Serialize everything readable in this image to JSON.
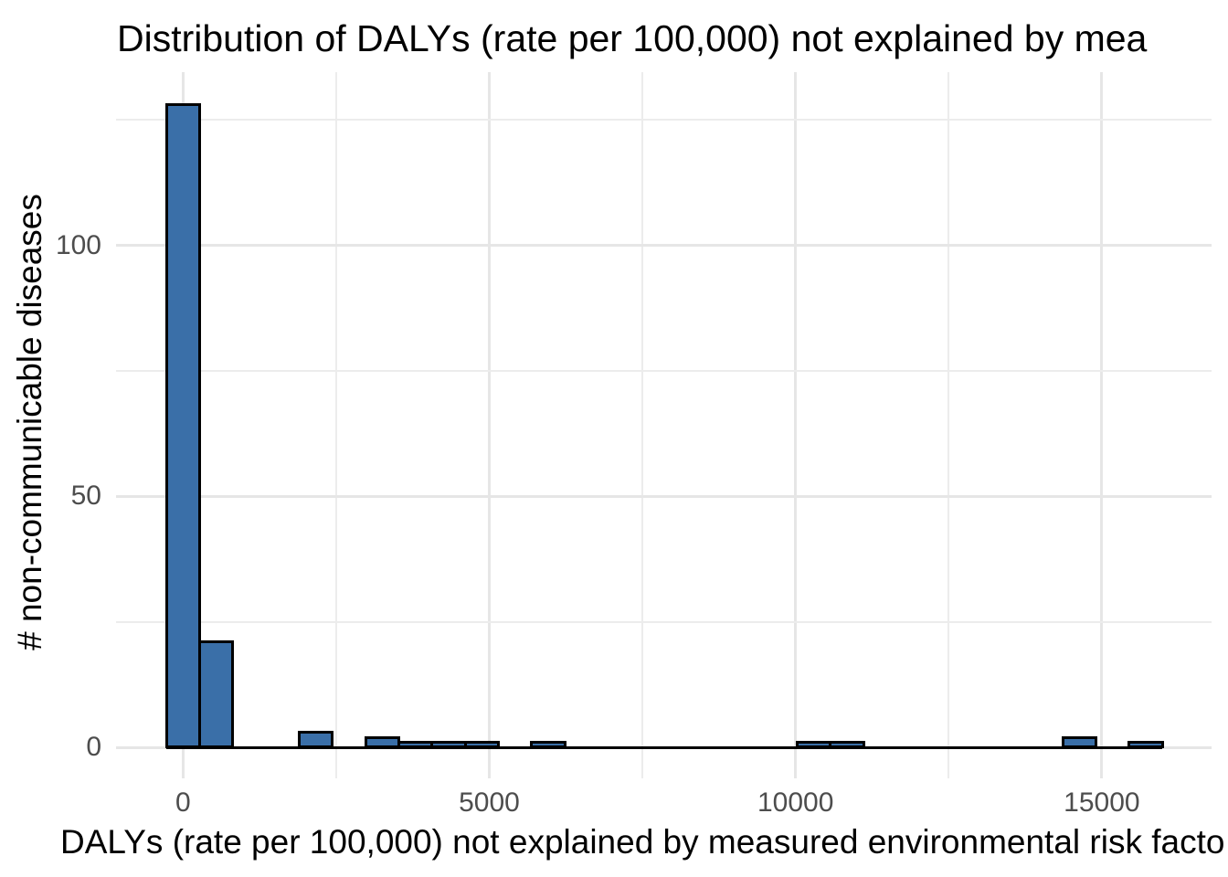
{
  "chart_data": {
    "type": "histogram",
    "title": "Distribution of DALYs (rate per 100,000) not explained by mea",
    "xlabel": "DALYs (rate per 100,000) not explained by measured environmental risk facto",
    "ylabel": "# non-communicable diseases",
    "x_tick_values": [
      0,
      5000,
      10000,
      15000
    ],
    "x_tick_labels": [
      "0",
      "5000",
      "10000",
      "15000"
    ],
    "x_minor_values": [
      2500,
      7500,
      12500
    ],
    "y_tick_values": [
      0,
      50,
      100
    ],
    "y_tick_labels": [
      "0",
      "50",
      "100"
    ],
    "y_minor_values": [
      25,
      75,
      125
    ],
    "bin_width": 542,
    "bin_centers": [
      0,
      542,
      1084,
      1626,
      2168,
      2710,
      3252,
      3794,
      4336,
      4878,
      5420,
      5962,
      6504,
      7046,
      7588,
      8130,
      8672,
      9214,
      9756,
      10298,
      10840,
      11382,
      11924,
      12466,
      13008,
      13550,
      14092,
      14634,
      15176,
      15718
    ],
    "counts": [
      128,
      21,
      0,
      0,
      3,
      0,
      2,
      1,
      1,
      1,
      0,
      1,
      0,
      0,
      0,
      0,
      0,
      0,
      0,
      1,
      1,
      0,
      0,
      0,
      0,
      0,
      0,
      2,
      0,
      1
    ],
    "xlim": [
      -1090,
      16890
    ],
    "ylim": [
      -6.5,
      134.5
    ],
    "grid": "on",
    "legend": "none",
    "colors": {
      "bar_fill": "#3A6FA8",
      "bar_stroke": "#000000",
      "grid_major": "#E6E6E6",
      "grid_minor": "#ECECEC",
      "tick_text": "#4D4D4D",
      "title_text": "#000000",
      "axis_title_text": "#000000",
      "background": "#FFFFFF"
    }
  }
}
